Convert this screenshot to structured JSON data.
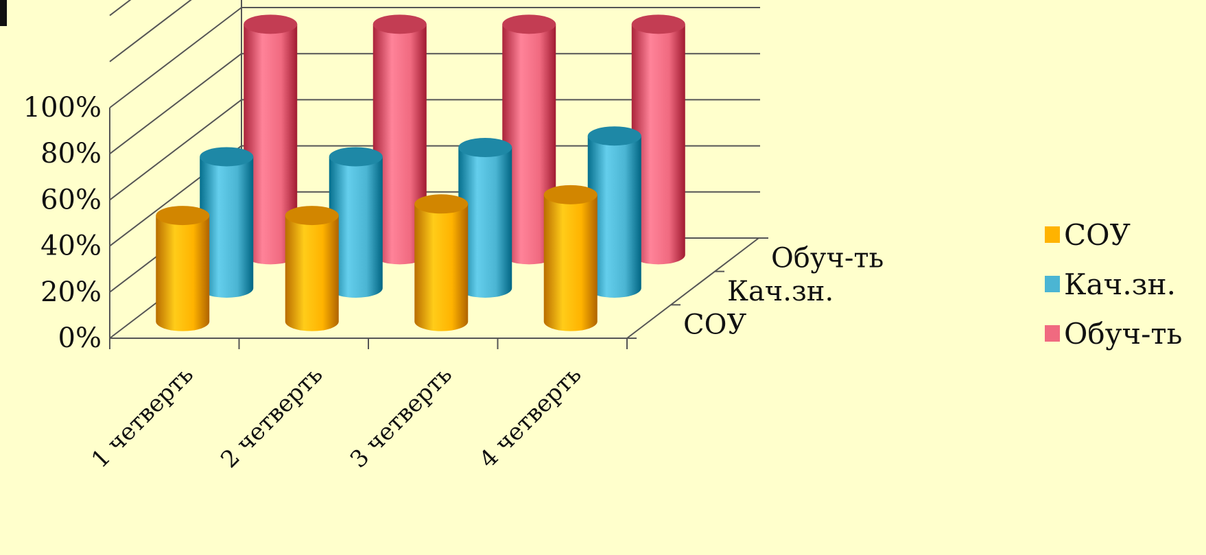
{
  "chart_data": {
    "type": "bar",
    "style": "3d-cylinder",
    "categories": [
      "1 четверть",
      "2 четверть",
      "3 четверть",
      "4 четверть"
    ],
    "depth_labels": [
      "СОУ",
      "Кач.зн.",
      "Обуч-ть"
    ],
    "y_ticks": [
      "0%",
      "20%",
      "40%",
      "60%",
      "80%",
      "100%"
    ],
    "ylim": [
      0,
      100
    ],
    "grid": true,
    "legend_position": "right",
    "series": [
      {
        "name": "СОУ",
        "color": "#FFB300",
        "values": [
          46,
          46,
          51,
          55
        ]
      },
      {
        "name": "Кач.зн.",
        "color": "#4BB5D3",
        "values": [
          57,
          57,
          61,
          66
        ]
      },
      {
        "name": "Обуч-ть",
        "color": "#F06A80",
        "values": [
          100,
          100,
          100,
          100
        ]
      }
    ]
  },
  "legend": {
    "items": [
      {
        "label": "СОУ",
        "color": "#FFB300"
      },
      {
        "label": "Кач.зн.",
        "color": "#4BB5D3"
      },
      {
        "label": "Обуч-ть",
        "color": "#F06A80"
      }
    ]
  }
}
